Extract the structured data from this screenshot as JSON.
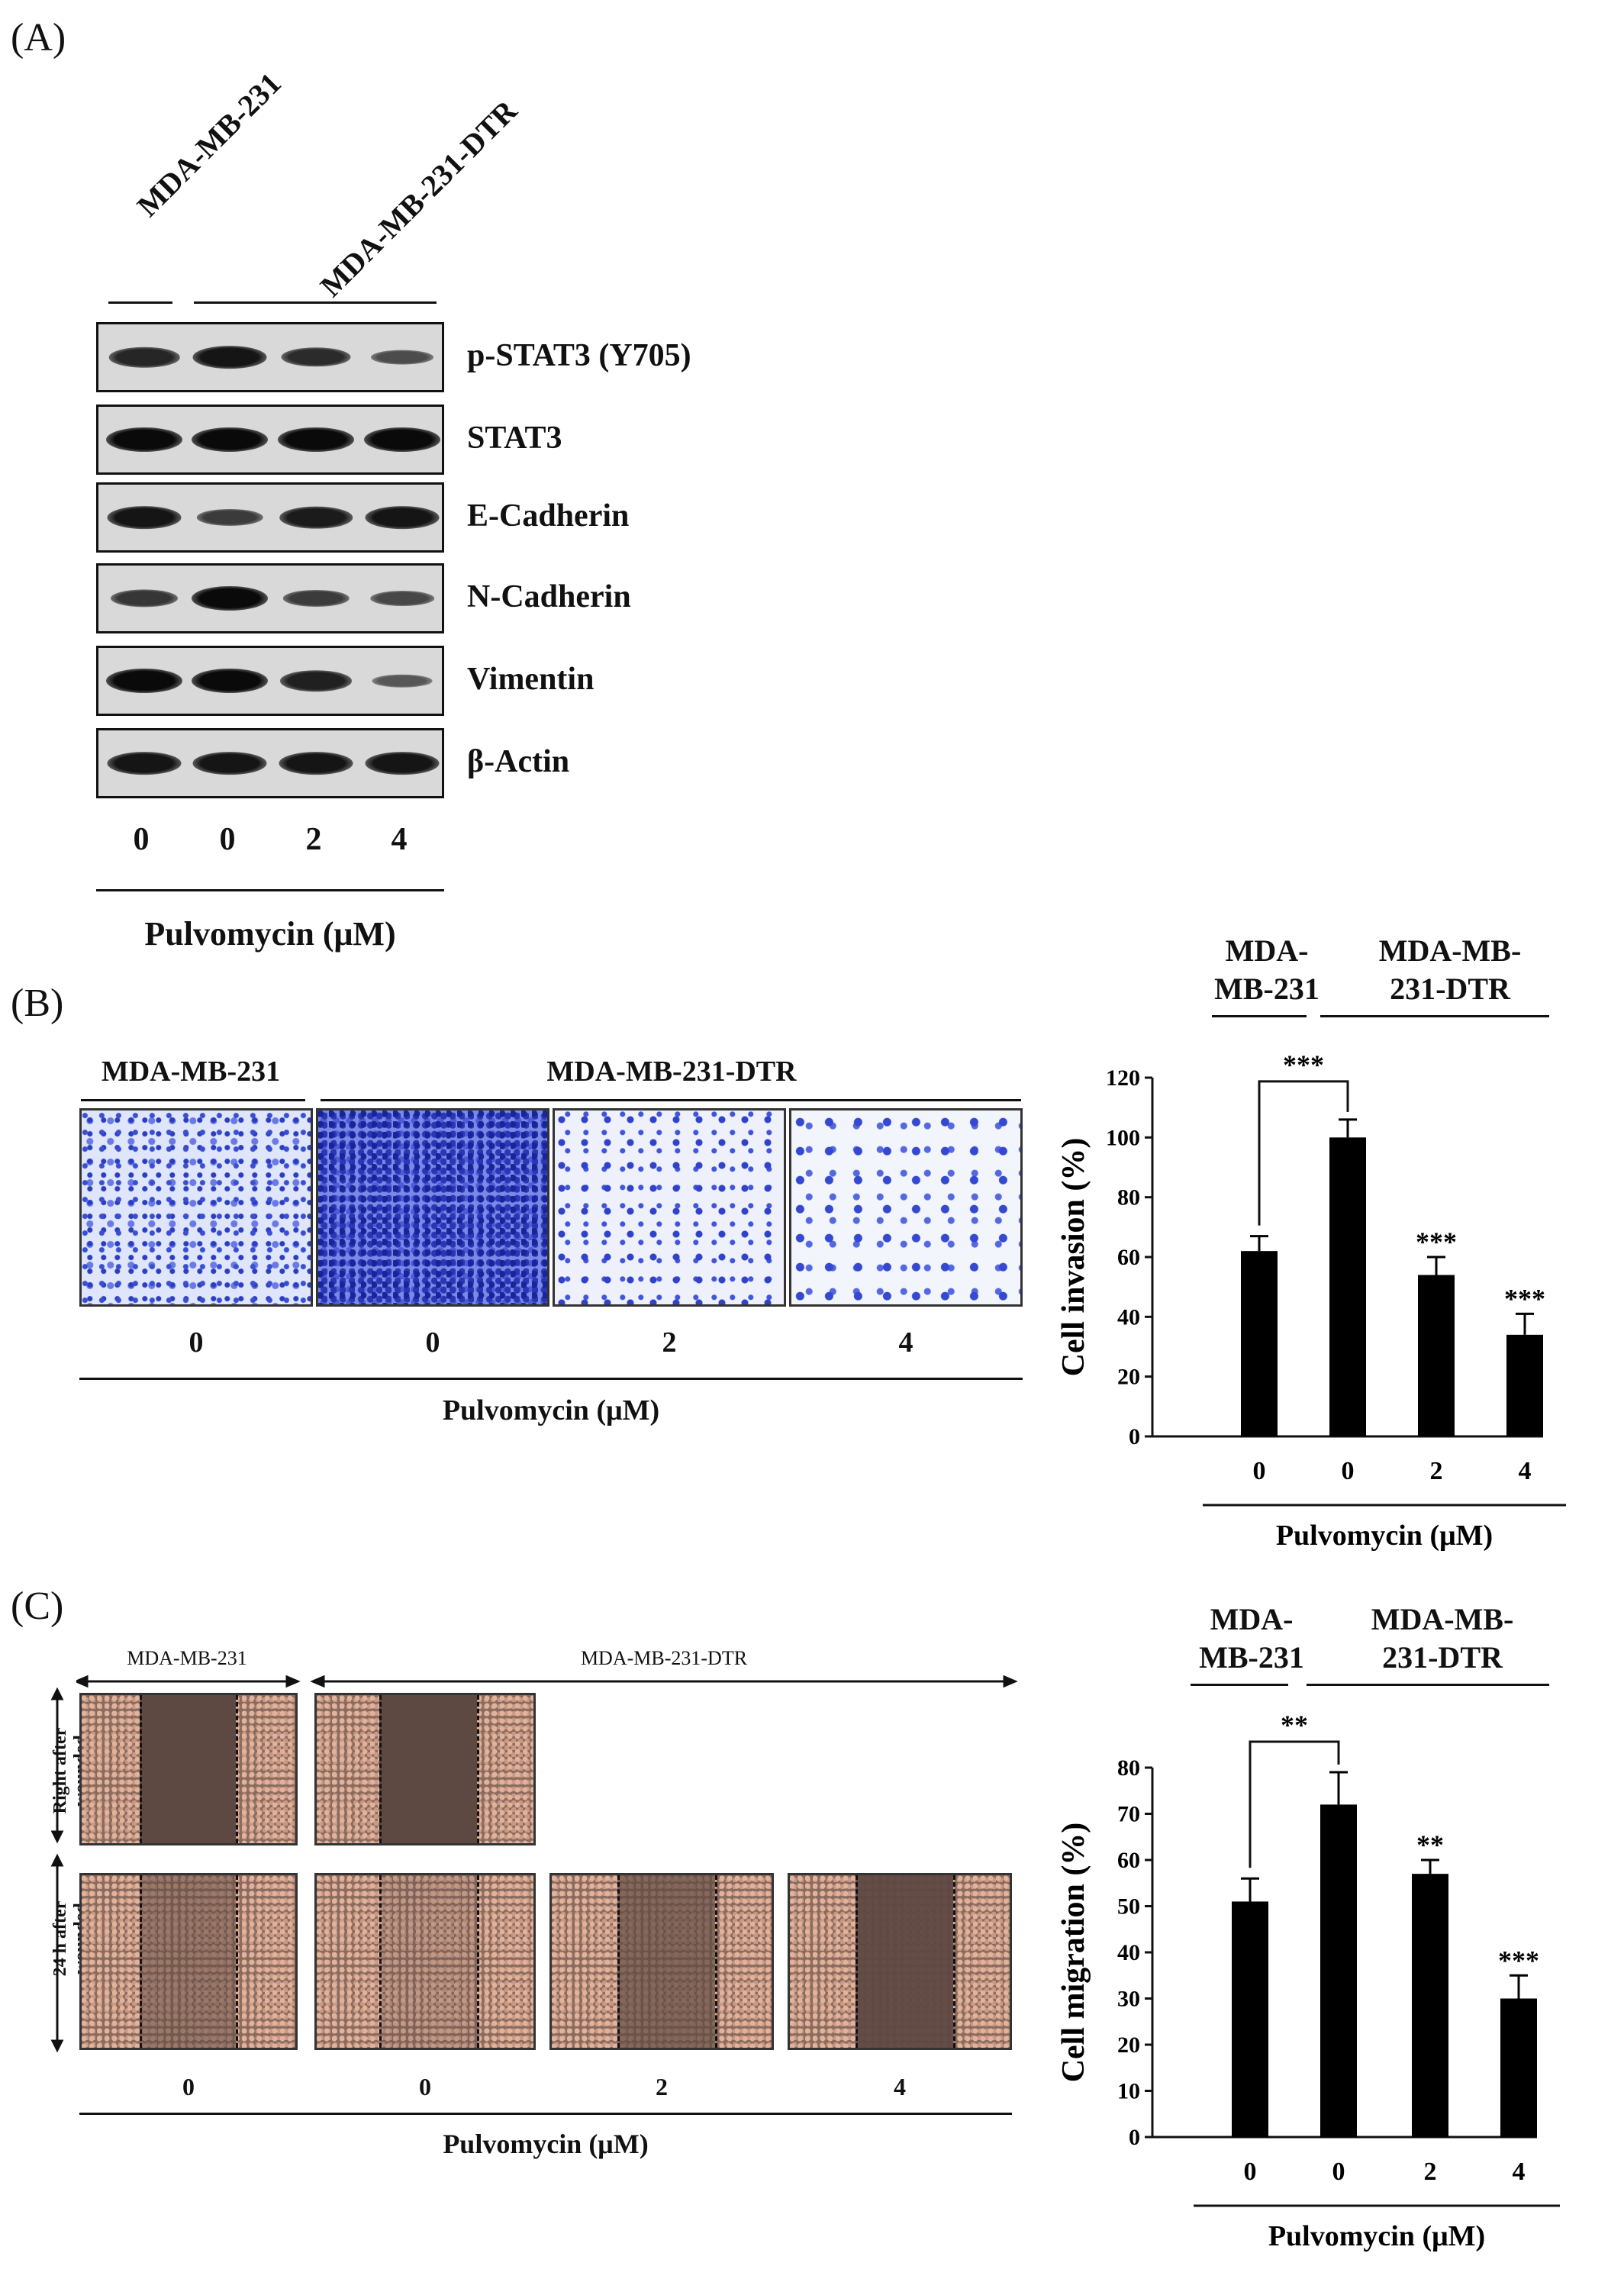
{
  "panelA": {
    "letter": "(A)",
    "group1": "MDA-MB-231",
    "group2": "MDA-MB-231-DTR",
    "rows": [
      {
        "label": "p-STAT3 (Y705)",
        "bands": [
          0.75,
          0.9,
          0.7,
          0.4
        ]
      },
      {
        "label": "STAT3",
        "bands": [
          1.0,
          1.0,
          1.0,
          1.0
        ]
      },
      {
        "label": "E-Cadherin",
        "bands": [
          0.9,
          0.55,
          0.85,
          0.9
        ]
      },
      {
        "label": "N-Cadherin",
        "bands": [
          0.6,
          1.0,
          0.55,
          0.45
        ]
      },
      {
        "label": "Vimentin",
        "bands": [
          1.0,
          1.0,
          0.8,
          0.3
        ]
      },
      {
        "label": "β-Actin",
        "bands": [
          0.9,
          0.9,
          0.9,
          0.9
        ]
      }
    ],
    "lanes": [
      "0",
      "0",
      "2",
      "4"
    ],
    "xlabel": "Pulvomycin (μM)"
  },
  "panelB": {
    "letter": "(B)",
    "img_group1": "MDA-MB-231",
    "img_group2": "MDA-MB-231-DTR",
    "img_lanes": [
      "0",
      "0",
      "2",
      "4"
    ],
    "img_xlabel": "Pulvomycin (μM)",
    "chart_group1": "MDA-\nMB-231",
    "chart_group1_l1": "MDA-",
    "chart_group1_l2": "MB-231",
    "chart_group2_l1": "MDA-MB-",
    "chart_group2_l2": "231-DTR"
  },
  "panelC": {
    "letter": "(C)",
    "img_group1": "MDA-MB-231",
    "img_group2": "MDA-MB-231-DTR",
    "row1_label_l1": "Right after",
    "row1_label_l2": "wounded",
    "row2_label_l1": "24 h after",
    "row2_label_l2": "wounded",
    "img_lanes": [
      "0",
      "0",
      "2",
      "4"
    ],
    "img_xlabel": "Pulvomycin (μM)",
    "chart_group1_l1": "MDA-",
    "chart_group1_l2": "MB-231",
    "chart_group2_l1": "MDA-MB-",
    "chart_group2_l2": "231-DTR"
  },
  "chart_data": [
    {
      "type": "bar",
      "categories": [
        "0",
        "0",
        "2",
        "4"
      ],
      "values": [
        62,
        100,
        54,
        34
      ],
      "errors": [
        5,
        6,
        6,
        7
      ],
      "ylabel": "Cell invasion (%)",
      "xlabel": "Pulvomycin (μM)",
      "ylim": [
        0,
        120
      ],
      "yticks": [
        0,
        20,
        40,
        60,
        80,
        100,
        120
      ],
      "significance": [
        "",
        "",
        "***",
        "***"
      ],
      "bracket_label": "***"
    },
    {
      "type": "bar",
      "categories": [
        "0",
        "0",
        "2",
        "4"
      ],
      "values": [
        51,
        72,
        57,
        30
      ],
      "errors": [
        5,
        7,
        3,
        5
      ],
      "ylabel": "Cell migration (%)",
      "xlabel": "Pulvomycin (μM)",
      "ylim": [
        0,
        80
      ],
      "yticks": [
        0,
        10,
        20,
        30,
        40,
        50,
        60,
        70,
        80
      ],
      "significance": [
        "",
        "",
        "**",
        "***"
      ],
      "bracket_label": "**"
    }
  ]
}
